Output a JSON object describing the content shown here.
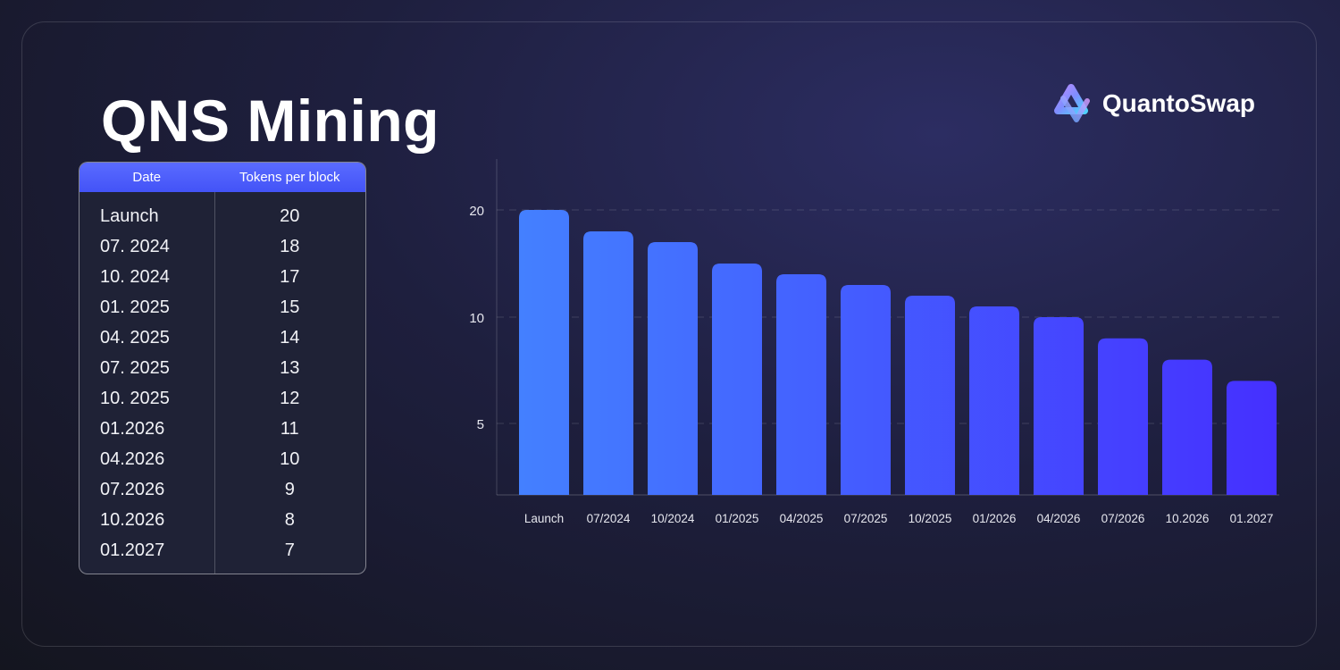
{
  "header": {
    "title": "QNS Mining",
    "brand": "QuantoSwap",
    "logo_icon": "quantoswap-logo-icon"
  },
  "colors": {
    "accent": "#4f5dff",
    "bar_start": "#4480ff",
    "bar_end": "#4530ff",
    "table_header": "#4a5af9"
  },
  "table": {
    "headers": {
      "date": "Date",
      "tokens": "Tokens per block"
    },
    "rows": [
      {
        "date": "Launch",
        "tokens": "20"
      },
      {
        "date": "07. 2024",
        "tokens": "18"
      },
      {
        "date": "10. 2024",
        "tokens": "17"
      },
      {
        "date": "01. 2025",
        "tokens": "15"
      },
      {
        "date": "04. 2025",
        "tokens": "14"
      },
      {
        "date": "07. 2025",
        "tokens": "13"
      },
      {
        "date": "10. 2025",
        "tokens": "12"
      },
      {
        "date": "01.2026",
        "tokens": "11"
      },
      {
        "date": "04.2026",
        "tokens": "10"
      },
      {
        "date": "07.2026",
        "tokens": "9"
      },
      {
        "date": "10.2026",
        "tokens": "8"
      },
      {
        "date": "01.2027",
        "tokens": "7"
      }
    ]
  },
  "chart_data": {
    "type": "bar",
    "title": "",
    "xlabel": "",
    "ylabel": "",
    "categories": [
      "Launch",
      "07/2024",
      "10/2024",
      "01/2025",
      "04/2025",
      "07/2025",
      "10/2025",
      "01/2026",
      "04/2026",
      "07/2026",
      "10.2026",
      "01.2027"
    ],
    "values": [
      20,
      18,
      17,
      15,
      14,
      13,
      12,
      11,
      10,
      9,
      8,
      7
    ],
    "yticks": [
      {
        "value": 20,
        "label": "20"
      },
      {
        "value": 10,
        "label": "10"
      },
      {
        "value": 5,
        "label": "5"
      }
    ],
    "grid": true,
    "legend": "none"
  }
}
